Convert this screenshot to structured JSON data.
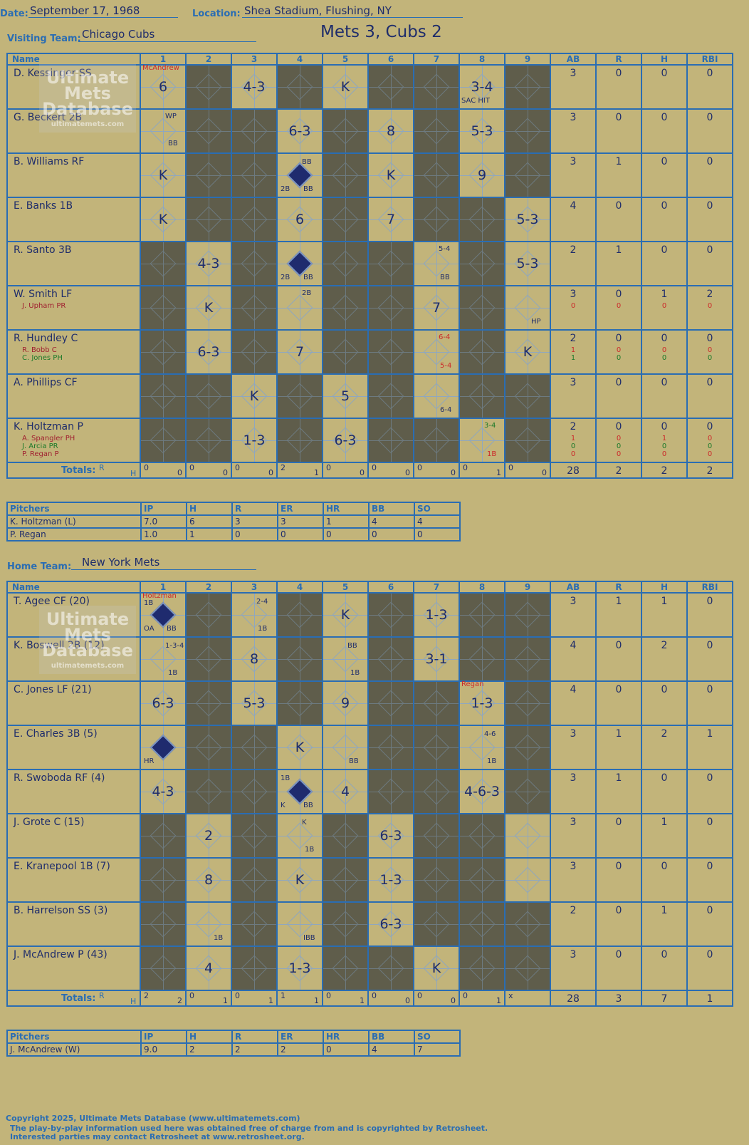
{
  "header": {
    "date_label": "Date:",
    "date": "September 17, 1968",
    "location_label": "Location:",
    "location": "Shea Stadium, Flushing, NY",
    "visiting_label": "Visiting Team:",
    "visiting_team": "Chicago Cubs",
    "score_title": "Mets 3, Cubs 2",
    "home_label": "Home Team:",
    "home_team": "New York Mets"
  },
  "columns": {
    "name": "Name",
    "innings": [
      "1",
      "2",
      "3",
      "4",
      "5",
      "6",
      "7",
      "8",
      "9"
    ],
    "stats": [
      "AB",
      "R",
      "H",
      "RBI"
    ]
  },
  "totals_label": "Totals:",
  "totals_rh": {
    "r": "R",
    "h": "H"
  },
  "pitchers_label": "Pitchers",
  "pitch_cols": [
    "IP",
    "H",
    "R",
    "ER",
    "HR",
    "BB",
    "SO"
  ],
  "watermark": {
    "line1": "Ultimate",
    "line2": "Mets",
    "line3": "Database",
    "url": "ultimatemets.com"
  },
  "visitors": {
    "batters": [
      {
        "name": "D. Kessinger SS",
        "subs": [],
        "stats": [
          "3",
          "0",
          "0",
          "0"
        ],
        "sub_stats": []
      },
      {
        "name": "G. Beckert 2B",
        "subs": [],
        "stats": [
          "3",
          "0",
          "0",
          "0"
        ],
        "sub_stats": []
      },
      {
        "name": "B. Williams RF",
        "subs": [],
        "stats": [
          "3",
          "1",
          "0",
          "0"
        ],
        "sub_stats": []
      },
      {
        "name": "E. Banks 1B",
        "subs": [],
        "stats": [
          "4",
          "0",
          "0",
          "0"
        ],
        "sub_stats": []
      },
      {
        "name": "R. Santo 3B",
        "subs": [],
        "stats": [
          "2",
          "1",
          "0",
          "0"
        ],
        "sub_stats": []
      },
      {
        "name": "W. Smith LF",
        "subs": [
          "J. Upham PR"
        ],
        "stats": [
          "3",
          "0",
          "1",
          "2"
        ],
        "sub_stats": [
          [
            "0",
            "0",
            "0",
            "0"
          ]
        ]
      },
      {
        "name": "R. Hundley C",
        "subs": [
          "R. Bobb C",
          "C. Jones PH"
        ],
        "stats": [
          "2",
          "0",
          "0",
          "0"
        ],
        "sub_stats": [
          [
            "1",
            "0",
            "0",
            "0"
          ],
          [
            "1",
            "0",
            "0",
            "0"
          ]
        ]
      },
      {
        "name": "A. Phillips CF",
        "subs": [],
        "stats": [
          "3",
          "0",
          "0",
          "0"
        ],
        "sub_stats": []
      },
      {
        "name": "K. Holtzman P",
        "subs": [
          "A. Spangler PH",
          "J. Arcia PR",
          "P. Regan P"
        ],
        "stats": [
          "2",
          "0",
          "0",
          "0"
        ],
        "sub_stats": [
          [
            "1",
            "0",
            "1",
            "0"
          ],
          [
            "0",
            "0",
            "0",
            "0"
          ],
          [
            "0",
            "0",
            "0",
            "0"
          ]
        ]
      }
    ],
    "plays": [
      {
        "1": "6",
        "3": "4-3",
        "5": "K",
        "8": "3-4"
      },
      {
        "4": "6-3",
        "6": "8",
        "8": "5-3"
      },
      {
        "1": "K",
        "6": "K",
        "8": "9"
      },
      {
        "1": "K",
        "4": "6",
        "6": "7",
        "9": "5-3"
      },
      {
        "2": "4-3",
        "9": "5-3"
      },
      {
        "2": "K",
        "7": "7"
      },
      {
        "2": "6-3",
        "4": "7",
        "9": "K"
      },
      {
        "3": "K",
        "5": "5"
      },
      {
        "3": "1-3",
        "5": "6-3"
      }
    ],
    "notes": {
      "pitcher_change": "McAndrew",
      "sac_hit": "SAC HIT",
      "wp": "WP",
      "bb": "BB",
      "b2": "2B",
      "hp": "HP",
      "n54": "5-4",
      "n64": "6-4",
      "b1": "1B",
      "n34": "3-4"
    },
    "totals": [
      [
        "0",
        "0"
      ],
      [
        "0",
        "0"
      ],
      [
        "0",
        "0"
      ],
      [
        "2",
        "1"
      ],
      [
        "0",
        "0"
      ],
      [
        "0",
        "0"
      ],
      [
        "0",
        "0"
      ],
      [
        "0",
        "1"
      ],
      [
        "0",
        "0"
      ]
    ],
    "stat_totals": [
      "28",
      "2",
      "2",
      "2"
    ],
    "pitchers": [
      {
        "name": "K. Holtzman (L)",
        "vals": [
          "7.0",
          "6",
          "3",
          "3",
          "1",
          "4",
          "4"
        ]
      },
      {
        "name": "P. Regan",
        "vals": [
          "1.0",
          "1",
          "0",
          "0",
          "0",
          "0",
          "0"
        ]
      }
    ]
  },
  "home": {
    "batters": [
      {
        "name": "T. Agee CF (20)",
        "stats": [
          "3",
          "1",
          "1",
          "0"
        ]
      },
      {
        "name": "K. Boswell 2B (12)",
        "stats": [
          "4",
          "0",
          "2",
          "0"
        ]
      },
      {
        "name": "C. Jones LF (21)",
        "stats": [
          "4",
          "0",
          "0",
          "0"
        ]
      },
      {
        "name": "E. Charles 3B (5)",
        "stats": [
          "3",
          "1",
          "2",
          "1"
        ]
      },
      {
        "name": "R. Swoboda RF (4)",
        "stats": [
          "3",
          "1",
          "0",
          "0"
        ]
      },
      {
        "name": "J. Grote C (15)",
        "stats": [
          "3",
          "0",
          "1",
          "0"
        ]
      },
      {
        "name": "E. Kranepool 1B (7)",
        "stats": [
          "3",
          "0",
          "0",
          "0"
        ]
      },
      {
        "name": "B. Harrelson SS (3)",
        "stats": [
          "2",
          "0",
          "1",
          "0"
        ]
      },
      {
        "name": "J. McAndrew P (43)",
        "stats": [
          "3",
          "0",
          "0",
          "0"
        ]
      }
    ],
    "plays": [
      {
        "5": "K",
        "7": "1-3"
      },
      {
        "3": "8",
        "7": "3-1"
      },
      {
        "1": "6-3",
        "3": "5-3",
        "5": "9",
        "8": "1-3"
      },
      {
        "4": "K"
      },
      {
        "1": "4-3",
        "5": "4",
        "8": "4-6-3"
      },
      {
        "2": "2",
        "6": "6-3"
      },
      {
        "2": "8",
        "4": "K",
        "6": "1-3"
      },
      {
        "6": "6-3"
      },
      {
        "2": "4",
        "4": "1-3",
        "7": "K"
      }
    ],
    "notes": {
      "pitcher_change_1": "Holtzman",
      "pitcher_change_8": "Regan",
      "b1": "1B",
      "oa": "OA",
      "bb": "BB",
      "n24": "2-4",
      "n134": "1-3-4",
      "hr": "HR",
      "n46": "4-6",
      "k": "K",
      "ibb": "IBB"
    },
    "totals": [
      [
        "2",
        "2"
      ],
      [
        "0",
        "1"
      ],
      [
        "0",
        "1"
      ],
      [
        "1",
        "1"
      ],
      [
        "0",
        "1"
      ],
      [
        "0",
        "0"
      ],
      [
        "0",
        "0"
      ],
      [
        "0",
        "1"
      ],
      [
        "x",
        ""
      ]
    ],
    "stat_totals": [
      "28",
      "3",
      "7",
      "1"
    ],
    "pitchers": [
      {
        "name": "J. McAndrew (W)",
        "vals": [
          "9.0",
          "2",
          "2",
          "2",
          "0",
          "4",
          "7"
        ]
      }
    ]
  },
  "footer": {
    "line1": "Copyright 2025, Ultimate Mets Database (www.ultimatemets.com)",
    "line2": "The play-by-play information used here was obtained free of charge from and is copyrighted by Retrosheet.",
    "line3": "Interested parties may contact Retrosheet at www.retrosheet.org."
  }
}
